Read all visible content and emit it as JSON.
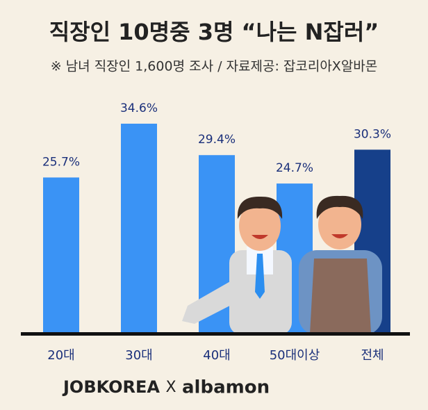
{
  "chart_data": {
    "type": "bar",
    "title": "직장인 10명중 3명 “나는 N잡러”",
    "subtitle": "※ 남녀 직장인 1,600명 조사 / 자료제공: 잡코리아X알바몬",
    "categories": [
      "20대",
      "30대",
      "40대",
      "50대이상",
      "전체"
    ],
    "values": [
      25.7,
      34.6,
      29.4,
      24.7,
      30.3
    ],
    "value_labels": [
      "25.7%",
      "34.6%",
      "29.4%",
      "24.7%",
      "30.3%"
    ],
    "colors": [
      "#3a93f5",
      "#3a93f5",
      "#3a93f5",
      "#3a93f5",
      "#16408a"
    ],
    "footer": {
      "brand1": "JOBKOREA",
      "separator": "X",
      "brand2": "albamon"
    }
  }
}
